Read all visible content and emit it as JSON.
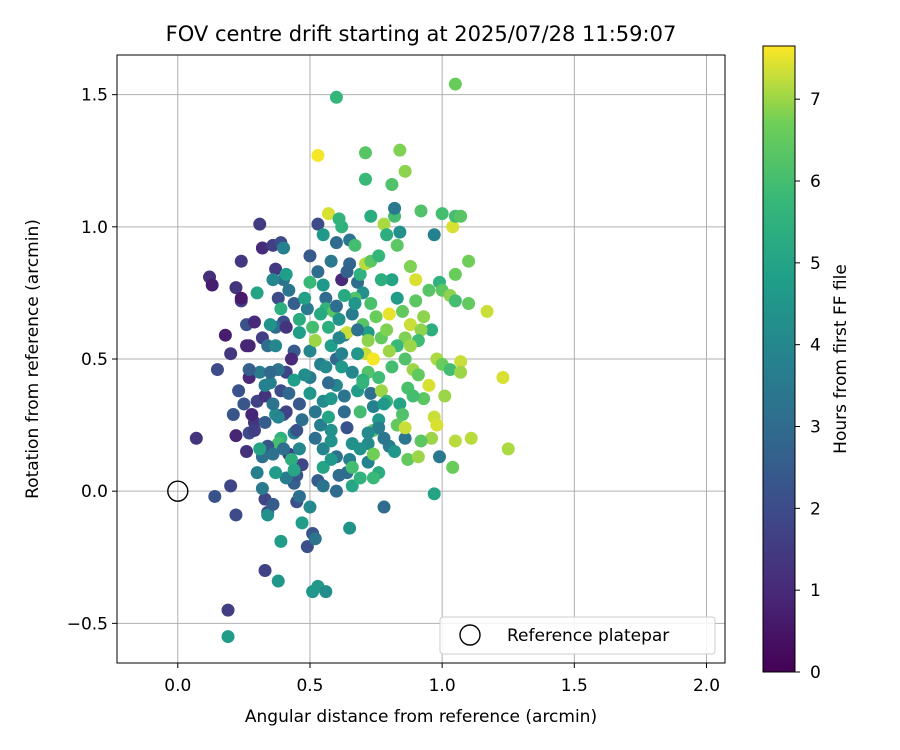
{
  "chart_data": {
    "type": "scatter",
    "title": "FOV centre drift starting at 2025/07/28 11:59:07",
    "xlabel": "Angular distance from reference (arcmin)",
    "ylabel": "Rotation from reference (arcmin)",
    "xlim": [
      -0.23,
      2.07
    ],
    "ylim": [
      -0.65,
      1.65
    ],
    "xticks": [
      0.0,
      0.5,
      1.0,
      1.5,
      2.0
    ],
    "xtick_labels": [
      "0.0",
      "0.5",
      "1.0",
      "1.5",
      "2.0"
    ],
    "yticks": [
      -0.5,
      0.0,
      0.5,
      1.0,
      1.5
    ],
    "ytick_labels": [
      "−0.5",
      "0.0",
      "0.5",
      "1.0",
      "1.5"
    ],
    "grid": true,
    "colormap": "viridis",
    "colorbar": {
      "label": "Hours from first FF file",
      "range": [
        0,
        7.65
      ],
      "ticks": [
        0,
        1,
        2,
        3,
        4,
        5,
        6,
        7
      ],
      "tick_labels": [
        "0",
        "1",
        "2",
        "3",
        "4",
        "5",
        "6",
        "7"
      ]
    },
    "legend": {
      "position": "lower-right",
      "entries": [
        {
          "label": "Reference platepar",
          "marker": "open-circle"
        }
      ]
    },
    "reference_point": {
      "x": 0.0,
      "y": 0.0
    },
    "points": [
      [
        0.26,
        0.55,
        0.9
      ],
      [
        0.12,
        0.81,
        1.2
      ],
      [
        0.13,
        0.78,
        0.7
      ],
      [
        0.18,
        0.59,
        0.7
      ],
      [
        0.2,
        0.52,
        1.4
      ],
      [
        0.15,
        0.46,
        2.0
      ],
      [
        0.27,
        0.43,
        1.0
      ],
      [
        0.23,
        0.38,
        2.2
      ],
      [
        0.07,
        0.2,
        1.3
      ],
      [
        0.21,
        0.29,
        2.3
      ],
      [
        0.22,
        0.21,
        0.9
      ],
      [
        0.27,
        0.22,
        2.0
      ],
      [
        0.26,
        0.15,
        1.2
      ],
      [
        0.32,
        0.13,
        3.2
      ],
      [
        0.3,
        0.07,
        3.7
      ],
      [
        0.33,
        -0.03,
        1.8
      ],
      [
        0.34,
        -0.08,
        2.0
      ],
      [
        0.34,
        -0.09,
        4.3
      ],
      [
        0.39,
        -0.19,
        4.7
      ],
      [
        0.33,
        -0.3,
        1.7
      ],
      [
        0.38,
        -0.34,
        4.5
      ],
      [
        0.19,
        -0.45,
        1.6
      ],
      [
        0.19,
        -0.55,
        4.7
      ],
      [
        0.14,
        -0.02,
        2.2
      ],
      [
        0.2,
        0.02,
        1.8
      ],
      [
        0.22,
        -0.09,
        2.0
      ],
      [
        0.32,
        0.01,
        3.5
      ],
      [
        0.36,
        -0.05,
        2.5
      ],
      [
        0.44,
        0.03,
        2.6
      ],
      [
        0.45,
        -0.04,
        2.1
      ],
      [
        0.47,
        -0.12,
        4.7
      ],
      [
        0.5,
        -0.06,
        4.1
      ],
      [
        0.49,
        -0.21,
        2.1
      ],
      [
        0.51,
        -0.16,
        2.3
      ],
      [
        0.52,
        -0.18,
        3.3
      ],
      [
        0.51,
        -0.38,
        4.5
      ],
      [
        0.53,
        -0.36,
        4.6
      ],
      [
        0.56,
        -0.38,
        4.2
      ],
      [
        0.6,
        0.0,
        3.0
      ],
      [
        0.65,
        -0.14,
        4.4
      ],
      [
        0.3,
        0.75,
        5.0
      ],
      [
        0.31,
        1.01,
        1.5
      ],
      [
        0.32,
        0.92,
        1.1
      ],
      [
        0.36,
        0.93,
        1.6
      ],
      [
        0.39,
        0.94,
        2.0
      ],
      [
        0.4,
        0.92,
        3.8
      ],
      [
        0.37,
        0.84,
        1.5
      ],
      [
        0.4,
        0.8,
        3.3
      ],
      [
        0.41,
        0.82,
        4.8
      ],
      [
        0.36,
        0.8,
        4.0
      ],
      [
        0.38,
        0.73,
        2.0
      ],
      [
        0.42,
        0.76,
        3.4
      ],
      [
        0.44,
        0.71,
        2.6
      ],
      [
        0.39,
        0.69,
        5.4
      ],
      [
        0.4,
        0.64,
        2.1
      ],
      [
        0.37,
        0.62,
        3.0
      ],
      [
        0.41,
        0.62,
        1.3
      ],
      [
        0.46,
        0.6,
        4.8
      ],
      [
        0.44,
        0.53,
        2.4
      ],
      [
        0.43,
        0.5,
        1.0
      ],
      [
        0.41,
        0.45,
        1.8
      ],
      [
        0.38,
        0.46,
        3.3
      ],
      [
        0.35,
        0.41,
        3.8
      ],
      [
        0.39,
        0.38,
        2.0
      ],
      [
        0.42,
        0.37,
        2.9
      ],
      [
        0.44,
        0.42,
        4.8
      ],
      [
        0.37,
        0.29,
        4.2
      ],
      [
        0.4,
        0.29,
        2.2
      ],
      [
        0.41,
        0.3,
        1.7
      ],
      [
        0.44,
        0.22,
        3.9
      ],
      [
        0.39,
        0.2,
        5.5
      ],
      [
        0.38,
        0.18,
        6.0
      ],
      [
        0.42,
        0.14,
        1.7
      ],
      [
        0.45,
        0.23,
        2.2
      ],
      [
        0.46,
        0.16,
        4.0
      ],
      [
        0.47,
        0.1,
        1.8
      ],
      [
        0.45,
        0.06,
        2.3
      ],
      [
        0.41,
        0.05,
        3.6
      ],
      [
        0.34,
        0.17,
        2.3
      ],
      [
        0.29,
        0.26,
        1.4
      ],
      [
        0.25,
        0.33,
        2.3
      ],
      [
        0.28,
        0.29,
        0.9
      ],
      [
        0.3,
        0.34,
        1.7
      ],
      [
        0.27,
        0.55,
        0.9
      ],
      [
        0.26,
        0.63,
        2.2
      ],
      [
        0.22,
        0.77,
        1.3
      ],
      [
        0.24,
        0.72,
        1.6
      ],
      [
        0.24,
        0.87,
        1.4
      ],
      [
        0.24,
        0.73,
        0.6
      ],
      [
        0.29,
        0.64,
        1.0
      ],
      [
        0.32,
        0.58,
        1.6
      ],
      [
        0.34,
        0.55,
        3.1
      ],
      [
        0.31,
        0.45,
        3.6
      ],
      [
        0.27,
        0.46,
        2.6
      ],
      [
        0.33,
        0.36,
        1.3
      ],
      [
        0.35,
        0.45,
        2.9
      ],
      [
        0.29,
        0.23,
        1.6
      ],
      [
        0.31,
        0.16,
        5.0
      ],
      [
        0.36,
        0.14,
        3.2
      ],
      [
        0.37,
        0.07,
        4.7
      ],
      [
        0.5,
        0.37,
        4.5
      ],
      [
        0.52,
        0.3,
        3.4
      ],
      [
        0.55,
        0.34,
        4.1
      ],
      [
        0.54,
        0.25,
        3.7
      ],
      [
        0.52,
        0.2,
        3.1
      ],
      [
        0.55,
        0.16,
        3.9
      ],
      [
        0.58,
        0.19,
        4.4
      ],
      [
        0.6,
        0.13,
        3.2
      ],
      [
        0.55,
        0.09,
        5.0
      ],
      [
        0.53,
        0.04,
        2.5
      ],
      [
        0.5,
        0.43,
        3.6
      ],
      [
        0.5,
        0.53,
        4.0
      ],
      [
        0.54,
        0.48,
        3.7
      ],
      [
        0.51,
        0.62,
        6.0
      ],
      [
        0.52,
        0.57,
        7.0
      ],
      [
        0.49,
        0.69,
        3.5
      ],
      [
        0.5,
        0.79,
        5.8
      ],
      [
        0.53,
        0.83,
        3.0
      ],
      [
        0.5,
        0.89,
        2.4
      ],
      [
        0.53,
        1.01,
        2.0
      ],
      [
        0.55,
        0.97,
        4.6
      ],
      [
        0.56,
        0.73,
        3.0
      ],
      [
        0.56,
        0.69,
        5.6
      ],
      [
        0.59,
        0.68,
        6.3
      ],
      [
        0.6,
        0.7,
        3.1
      ],
      [
        0.61,
        0.65,
        4.4
      ],
      [
        0.63,
        0.59,
        3.5
      ],
      [
        0.58,
        0.55,
        4.8
      ],
      [
        0.6,
        0.5,
        2.9
      ],
      [
        0.62,
        0.47,
        4.6
      ],
      [
        0.6,
        0.4,
        4.0
      ],
      [
        0.63,
        0.36,
        3.4
      ],
      [
        0.63,
        0.3,
        3.0
      ],
      [
        0.64,
        0.24,
        2.2
      ],
      [
        0.66,
        0.18,
        4.3
      ],
      [
        0.65,
        0.12,
        3.7
      ],
      [
        0.64,
        0.07,
        3.0
      ],
      [
        0.66,
        0.02,
        5.1
      ],
      [
        0.69,
        0.05,
        5.5
      ],
      [
        0.72,
        0.11,
        3.8
      ],
      [
        0.58,
        0.87,
        3.5
      ],
      [
        0.6,
        0.94,
        3.0
      ],
      [
        0.62,
        1.0,
        5.5
      ],
      [
        0.65,
        0.95,
        3.4
      ],
      [
        0.67,
        0.93,
        6.0
      ],
      [
        0.65,
        0.86,
        2.8
      ],
      [
        0.68,
        0.79,
        3.0
      ],
      [
        0.7,
        0.75,
        4.3
      ],
      [
        0.67,
        0.73,
        6.2
      ],
      [
        0.66,
        0.67,
        3.6
      ],
      [
        0.7,
        0.63,
        6.3
      ],
      [
        0.72,
        0.6,
        4.7
      ],
      [
        0.71,
        0.52,
        7.3
      ],
      [
        0.72,
        0.45,
        6.2
      ],
      [
        0.7,
        0.42,
        5.4
      ],
      [
        0.73,
        0.37,
        3.2
      ],
      [
        0.74,
        0.32,
        3.8
      ],
      [
        0.76,
        0.27,
        4.6
      ],
      [
        0.74,
        0.23,
        6.2
      ],
      [
        0.72,
        0.18,
        4.1
      ],
      [
        0.74,
        0.14,
        6.7
      ],
      [
        0.76,
        0.07,
        5.3
      ],
      [
        0.74,
        0.05,
        5.8
      ],
      [
        0.78,
        -0.06,
        3.0
      ],
      [
        0.8,
        0.17,
        3.6
      ],
      [
        0.6,
        1.49,
        5.7
      ],
      [
        0.53,
        1.27,
        7.6
      ],
      [
        0.57,
        1.05,
        7.4
      ],
      [
        0.61,
        1.03,
        5.6
      ],
      [
        0.71,
        1.28,
        6.3
      ],
      [
        0.71,
        1.18,
        5.8
      ],
      [
        0.73,
        1.04,
        5.3
      ],
      [
        0.78,
        1.01,
        7.1
      ],
      [
        0.82,
        1.04,
        6.0
      ],
      [
        0.81,
        1.16,
        6.2
      ],
      [
        0.84,
        1.29,
        6.8
      ],
      [
        0.86,
        1.21,
        6.9
      ],
      [
        0.82,
        1.07,
        3.5
      ],
      [
        0.84,
        0.98,
        4.3
      ],
      [
        0.83,
        0.93,
        6.4
      ],
      [
        0.79,
        0.97,
        5.4
      ],
      [
        0.81,
        0.8,
        5.0
      ],
      [
        0.83,
        0.73,
        4.7
      ],
      [
        0.85,
        0.68,
        6.5
      ],
      [
        0.88,
        0.63,
        7.3
      ],
      [
        0.86,
        0.58,
        6.8
      ],
      [
        0.83,
        0.55,
        5.8
      ],
      [
        0.86,
        0.5,
        6.2
      ],
      [
        0.89,
        0.46,
        7.0
      ],
      [
        0.87,
        0.39,
        6.1
      ],
      [
        0.84,
        0.33,
        5.0
      ],
      [
        0.85,
        0.29,
        6.2
      ],
      [
        0.83,
        0.25,
        6.5
      ],
      [
        0.86,
        0.2,
        3.4
      ],
      [
        0.82,
        0.15,
        4.5
      ],
      [
        0.92,
        1.06,
        6.2
      ],
      [
        0.97,
        0.97,
        3.8
      ],
      [
        1.0,
        1.05,
        6.0
      ],
      [
        1.04,
        1.0,
        7.4
      ],
      [
        1.05,
        1.04,
        6.0
      ],
      [
        0.95,
        0.76,
        6.3
      ],
      [
        0.99,
        0.79,
        5.5
      ],
      [
        1.0,
        0.76,
        6.4
      ],
      [
        1.03,
        0.74,
        6.9
      ],
      [
        1.05,
        0.72,
        6.0
      ],
      [
        0.93,
        0.66,
        6.9
      ],
      [
        0.96,
        0.61,
        5.4
      ],
      [
        0.98,
        0.5,
        7.1
      ],
      [
        1.0,
        0.48,
        6.6
      ],
      [
        1.03,
        0.46,
        6.0
      ],
      [
        0.95,
        0.4,
        7.4
      ],
      [
        0.93,
        0.35,
        6.4
      ],
      [
        0.97,
        0.28,
        7.3
      ],
      [
        0.98,
        0.25,
        7.4
      ],
      [
        1.01,
        0.36,
        7.0
      ],
      [
        1.05,
        0.19,
        7.2
      ],
      [
        0.96,
        0.2,
        7.0
      ],
      [
        0.92,
        0.19,
        6.4
      ],
      [
        0.99,
        0.13,
        3.5
      ],
      [
        1.04,
        0.09,
        6.6
      ],
      [
        0.97,
        -0.01,
        5.0
      ],
      [
        1.07,
        0.49,
        7.3
      ],
      [
        1.07,
        0.45,
        7.0
      ],
      [
        1.1,
        0.71,
        6.5
      ],
      [
        1.1,
        0.87,
        6.7
      ],
      [
        1.11,
        0.2,
        7.2
      ],
      [
        1.17,
        0.68,
        7.3
      ],
      [
        1.23,
        0.43,
        7.4
      ],
      [
        1.25,
        0.16,
        7.1
      ],
      [
        1.05,
        0.82,
        6.6
      ],
      [
        1.05,
        1.54,
        6.6
      ],
      [
        1.07,
        1.04,
        6.3
      ],
      [
        0.63,
        0.74,
        5.2
      ],
      [
        0.67,
        0.71,
        4.5
      ],
      [
        0.72,
        0.57,
        6.9
      ],
      [
        0.74,
        0.5,
        7.6
      ],
      [
        0.76,
        0.43,
        5.9
      ],
      [
        0.77,
        0.58,
        6.5
      ],
      [
        0.79,
        0.61,
        6.8
      ],
      [
        0.8,
        0.67,
        7.5
      ],
      [
        0.8,
        0.53,
        7.0
      ],
      [
        0.81,
        0.47,
        6.0
      ],
      [
        0.77,
        0.38,
        7.0
      ],
      [
        0.79,
        0.34,
        5.7
      ],
      [
        0.69,
        0.3,
        6.0
      ],
      [
        0.68,
        0.38,
        4.7
      ],
      [
        0.7,
        0.41,
        5.6
      ],
      [
        0.66,
        0.45,
        4.0
      ],
      [
        0.68,
        0.52,
        4.5
      ],
      [
        0.64,
        0.6,
        7.3
      ],
      [
        0.68,
        0.61,
        3.2
      ],
      [
        0.69,
        0.82,
        5.5
      ],
      [
        0.71,
        0.86,
        7.2
      ],
      [
        0.73,
        0.87,
        6.4
      ],
      [
        0.76,
        0.89,
        5.7
      ],
      [
        0.56,
        0.47,
        4.1
      ],
      [
        0.57,
        0.41,
        3.0
      ],
      [
        0.58,
        0.35,
        4.5
      ],
      [
        0.57,
        0.28,
        5.0
      ],
      [
        0.58,
        0.23,
        4.3
      ],
      [
        0.46,
        0.33,
        2.4
      ],
      [
        0.47,
        0.27,
        3.1
      ],
      [
        0.48,
        0.44,
        4.2
      ],
      [
        0.46,
        0.65,
        5.3
      ],
      [
        0.48,
        0.73,
        4.9
      ],
      [
        0.54,
        0.67,
        5.2
      ],
      [
        0.55,
        0.78,
        4.6
      ],
      [
        0.62,
        0.8,
        1.0
      ],
      [
        0.64,
        0.83,
        2.7
      ],
      [
        0.57,
        0.62,
        5.4
      ],
      [
        0.61,
        0.58,
        4.0
      ],
      [
        0.62,
        0.52,
        3.8
      ],
      [
        0.75,
        0.66,
        6.6
      ],
      [
        0.77,
        0.8,
        5.4
      ],
      [
        0.73,
        0.71,
        6.1
      ],
      [
        0.88,
        0.85,
        6.8
      ],
      [
        0.9,
        0.8,
        7.4
      ],
      [
        0.9,
        0.72,
        6.4
      ],
      [
        0.92,
        0.61,
        6.9
      ],
      [
        0.91,
        0.57,
        5.9
      ],
      [
        0.88,
        0.55,
        7.0
      ],
      [
        0.91,
        0.44,
        6.5
      ],
      [
        0.89,
        0.36,
        6.0
      ],
      [
        0.86,
        0.24,
        7.3
      ],
      [
        0.87,
        0.12,
        6.5
      ],
      [
        0.91,
        0.13,
        7.0
      ],
      [
        0.78,
        0.2,
        3.4
      ],
      [
        0.78,
        0.33,
        4.6
      ],
      [
        0.76,
        0.24,
        3.7
      ],
      [
        0.72,
        0.22,
        4.1
      ],
      [
        0.69,
        0.16,
        4.4
      ],
      [
        0.66,
        0.09,
        6.0
      ],
      [
        0.61,
        0.06,
        3.0
      ],
      [
        0.58,
        0.12,
        4.6
      ],
      [
        0.55,
        0.02,
        3.3
      ],
      [
        0.35,
        0.63,
        4.4
      ],
      [
        0.37,
        0.55,
        4.0
      ],
      [
        0.33,
        0.4,
        3.8
      ],
      [
        0.36,
        0.33,
        3.3
      ],
      [
        0.38,
        0.28,
        4.0
      ],
      [
        0.33,
        0.26,
        2.5
      ],
      [
        0.4,
        0.16,
        3.1
      ],
      [
        0.43,
        0.12,
        5.4
      ],
      [
        0.44,
        0.08,
        5.1
      ],
      [
        0.46,
        -0.02,
        3.1
      ]
    ]
  }
}
